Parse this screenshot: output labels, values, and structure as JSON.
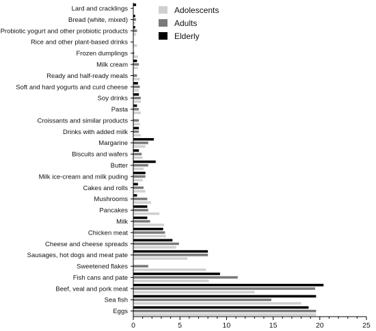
{
  "chart_data": {
    "type": "bar",
    "orientation": "horizontal",
    "title": "",
    "xlabel": "",
    "ylabel": "",
    "xlim": [
      0,
      25
    ],
    "xticks": [
      0,
      5,
      10,
      15,
      20,
      25
    ],
    "grid": false,
    "legend_position": "top-right",
    "categories": [
      "Lard and cracklings",
      "Bread (white, mixed)",
      "Probiotic yogurt and other probiotic products",
      "Rice and other plant-based drinks",
      "Frozen dumplings",
      "Milk cream",
      "Ready and half-ready meals",
      "Soft and hard yogurts and curd cheese",
      "Soy drinks",
      "Pasta",
      "Croissants and similar products",
      "Drinks with added milk",
      "Margarine",
      "Biscuits and wafers",
      "Butter",
      "Milk ice-cream and milk puding",
      "Cakes and rolls",
      "Mushrooms",
      "Pancakes",
      "Milk",
      "Chicken meat",
      "Cheese and cheese spreads",
      "Sausages, hot dogs and meat pate",
      "Sweetened flakes",
      "Fish cans and pate",
      "Beef, veal and pork meat",
      "Sea fish",
      "Eggs"
    ],
    "series": [
      {
        "name": "Elderly",
        "color": "#000000",
        "values": [
          0.3,
          0.2,
          0.2,
          0.0,
          0.0,
          0.4,
          0.0,
          0.5,
          0.6,
          0.4,
          0.0,
          0.6,
          2.2,
          0.6,
          2.4,
          1.3,
          0.5,
          0.4,
          1.5,
          1.5,
          3.2,
          4.2,
          8.0,
          0.0,
          9.3,
          20.4,
          19.6,
          18.8
        ]
      },
      {
        "name": "Adults",
        "color": "#7a7a7a",
        "values": [
          0.0,
          0.3,
          0.4,
          0.0,
          0.1,
          0.6,
          0.4,
          0.7,
          0.8,
          0.6,
          0.6,
          0.6,
          1.6,
          0.9,
          1.6,
          1.3,
          1.1,
          1.5,
          1.6,
          1.8,
          3.4,
          4.9,
          8.0,
          1.6,
          11.2,
          19.5,
          14.8,
          19.6
        ]
      },
      {
        "name": "Adolescents",
        "color": "#d0d0d0",
        "values": [
          0.0,
          0.2,
          0.3,
          0.4,
          0.5,
          0.5,
          0.7,
          0.6,
          0.8,
          0.8,
          0.7,
          0.8,
          1.3,
          1.0,
          1.1,
          1.0,
          1.3,
          1.9,
          2.8,
          3.3,
          3.5,
          4.6,
          5.8,
          7.8,
          8.1,
          13.0,
          18.0,
          19.6
        ]
      }
    ],
    "legend": [
      "Adolescents",
      "Adults",
      "Elderly"
    ]
  }
}
